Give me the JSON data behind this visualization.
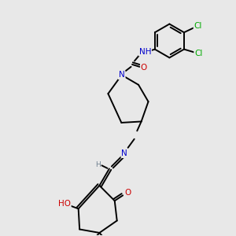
{
  "bg_color": "#e8e8e8",
  "bond_color": "#000000",
  "bond_lw": 1.4,
  "atom_colors": {
    "N": "#0000cc",
    "O": "#cc0000",
    "Cl": "#00aa00",
    "H": "#708090",
    "C": "#000000"
  },
  "font_size": 7.5,
  "fig_size": [
    3.0,
    3.0
  ],
  "dpi": 100
}
